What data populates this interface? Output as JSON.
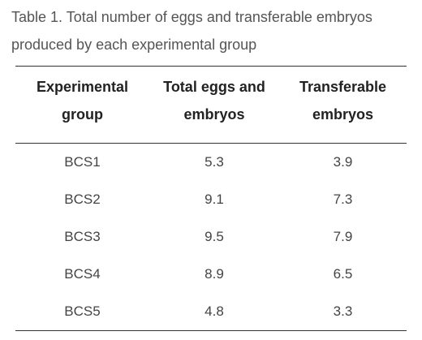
{
  "caption": "Table 1. Total number of eggs and transferable embryos produced by each experimental group",
  "columns": [
    {
      "line1": "Experimental",
      "line2": "group"
    },
    {
      "line1": "Total eggs and",
      "line2": "embryos"
    },
    {
      "line1": "Transferable",
      "line2": "embryos"
    }
  ],
  "rows": [
    [
      "BCS1",
      "5.3",
      "3.9"
    ],
    [
      "BCS2",
      "9.1",
      "7.3"
    ],
    [
      "BCS3",
      "9.5",
      "7.9"
    ],
    [
      "BCS4",
      "8.9",
      "6.5"
    ],
    [
      "BCS5",
      "4.8",
      "3.3"
    ]
  ]
}
